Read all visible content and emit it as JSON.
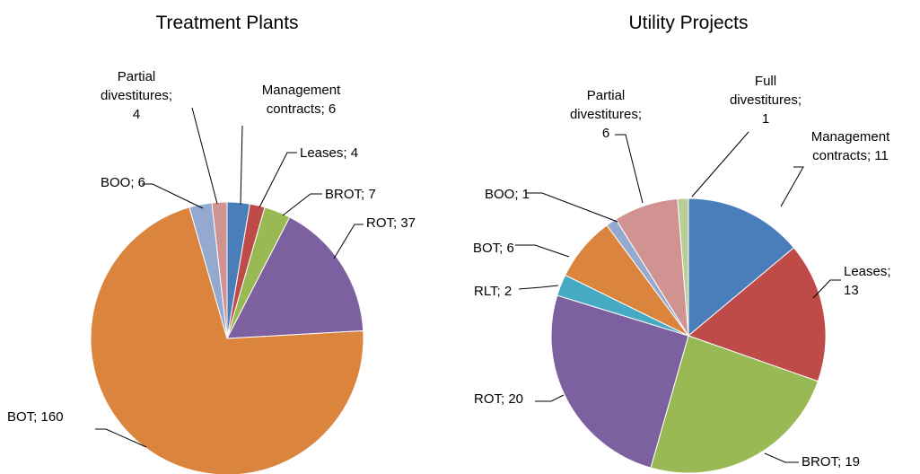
{
  "chart_data": [
    {
      "type": "pie",
      "title": "Treatment Plants",
      "values": [
        6,
        4,
        7,
        37,
        160,
        6,
        4
      ],
      "value_labels": [
        "Management contracts; 6",
        "Leases; 4",
        "BROT; 7",
        "ROT; 37",
        "BOT; 160",
        "BOO; 6",
        "Partial divestitures; 4"
      ],
      "colors": [
        "#4a7ebb",
        "#be4b48",
        "#98b954",
        "#7d60a0",
        "#db843d",
        "#93a9cf",
        "#d19392"
      ]
    },
    {
      "type": "pie",
      "title": "Utility Projects",
      "values": [
        11,
        13,
        19,
        20,
        2,
        6,
        1,
        6,
        1
      ],
      "value_labels": [
        "Management contracts; 11",
        "Leases; 13",
        "BROT; 19",
        "ROT; 20",
        "RLT; 2",
        "BOT; 6",
        "BOO; 1",
        "Partial divestitures; 6",
        "Full divestitures; 1"
      ],
      "colors": [
        "#4a7ebb",
        "#be4b48",
        "#98b954",
        "#7d60a0",
        "#46aac5",
        "#db843d",
        "#93a9cf",
        "#d19392",
        "#b9cd96"
      ]
    }
  ]
}
